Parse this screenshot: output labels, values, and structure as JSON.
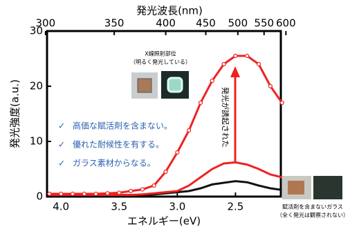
{
  "chart_data": {
    "type": "line",
    "title_top": "発光波長(nm)",
    "x_label": "エネルギー(eV)",
    "y_label": "発光強度(a.u.)",
    "x": [
      4.1,
      4.0,
      3.9,
      3.8,
      3.7,
      3.6,
      3.5,
      3.4,
      3.3,
      3.2,
      3.1,
      3.0,
      2.9,
      2.8,
      2.7,
      2.6,
      2.5,
      2.4,
      2.3,
      2.2,
      2.1
    ],
    "series": [
      {
        "color": "#ee2222",
        "marker": true,
        "values": [
          0.5,
          0.5,
          0.5,
          0.5,
          0.5,
          0.6,
          0.7,
          1,
          1.3,
          2,
          4.5,
          8,
          12,
          17,
          21,
          24,
          25.5,
          25.5,
          24,
          20,
          17
        ]
      },
      {
        "color": "#ee2222",
        "marker": false,
        "values": [
          0.3,
          0.3,
          0.3,
          0.3,
          0.3,
          0.3,
          0.3,
          0.3,
          0.4,
          0.6,
          0.8,
          1,
          2,
          3.5,
          5,
          6,
          6.2,
          5.8,
          5,
          4,
          3.5
        ]
      },
      {
        "color": "#111111",
        "marker": false,
        "values": [
          0.3,
          0.3,
          0.3,
          0.3,
          0.3,
          0.3,
          0.3,
          0.3,
          0.3,
          0.4,
          0.6,
          0.8,
          1,
          1.5,
          2.2,
          2.5,
          2.8,
          2.6,
          2,
          1.5,
          1.2
        ]
      }
    ],
    "xlim": [
      4.12,
      2.11
    ],
    "ylim": [
      0,
      30
    ],
    "xticks": [
      {
        "value": 4,
        "label": "4.0"
      },
      3.5,
      {
        "value": 3,
        "label": "3.0"
      },
      2.5
    ],
    "yticks": [
      0,
      10,
      20,
      30
    ],
    "x2ticks": [
      300,
      350,
      400,
      450,
      500,
      550,
      600
    ],
    "annotations": {
      "photo_label": [
        "X線照射部位",
        "（明るく発光している）"
      ],
      "bullets": [
        "高価な賦活剤を含まない。",
        "優れた耐候性を有する。",
        "ガラス素材からなる。"
      ],
      "bullet_mark": "✓",
      "arrow_label": "発光が誘起された",
      "glass_label": [
        "賦活剤を含まないガラス",
        "（全く発光は観察されない）"
      ]
    }
  }
}
